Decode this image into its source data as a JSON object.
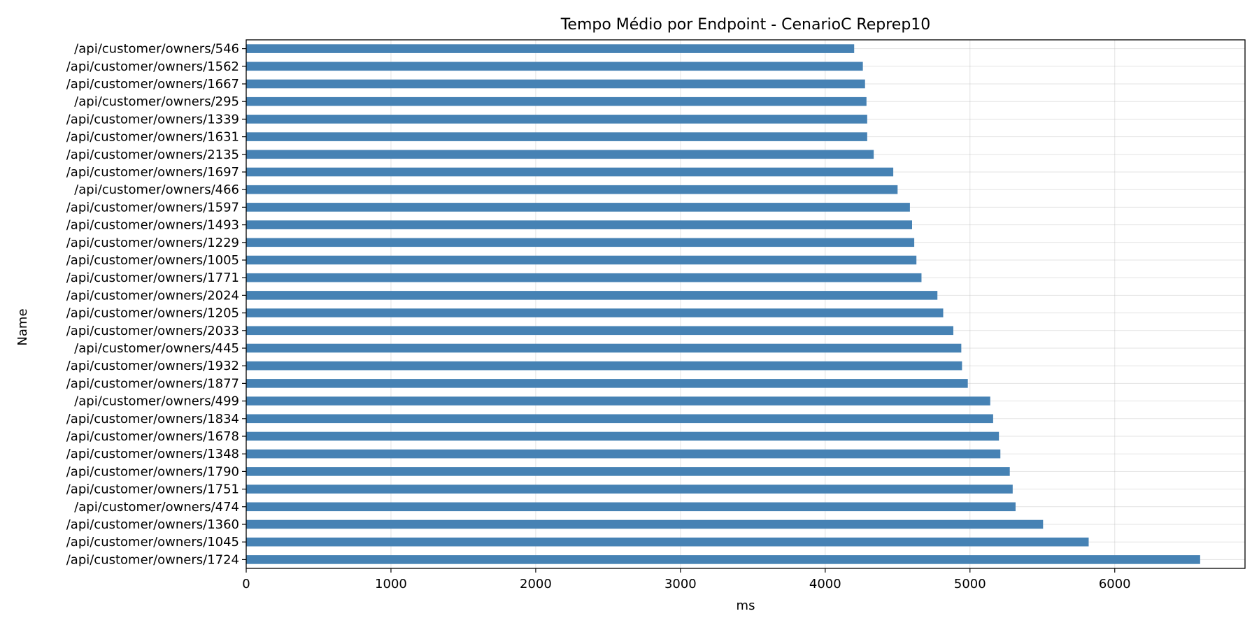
{
  "chart_data": {
    "type": "bar",
    "orientation": "horizontal",
    "title": "Tempo Médio por Endpoint - CenarioC Reprep10",
    "xlabel": "ms",
    "ylabel": "Name",
    "xlim": [
      0,
      6900
    ],
    "xticks": [
      0,
      1000,
      2000,
      3000,
      4000,
      5000,
      6000
    ],
    "grid": true,
    "legend": "none",
    "bar_color": "#4682b4",
    "categories": [
      "/api/customer/owners/546",
      "/api/customer/owners/1562",
      "/api/customer/owners/1667",
      "/api/customer/owners/295",
      "/api/customer/owners/1339",
      "/api/customer/owners/1631",
      "/api/customer/owners/2135",
      "/api/customer/owners/1697",
      "/api/customer/owners/466",
      "/api/customer/owners/1597",
      "/api/customer/owners/1493",
      "/api/customer/owners/1229",
      "/api/customer/owners/1005",
      "/api/customer/owners/1771",
      "/api/customer/owners/2024",
      "/api/customer/owners/1205",
      "/api/customer/owners/2033",
      "/api/customer/owners/445",
      "/api/customer/owners/1932",
      "/api/customer/owners/1877",
      "/api/customer/owners/499",
      "/api/customer/owners/1834",
      "/api/customer/owners/1678",
      "/api/customer/owners/1348",
      "/api/customer/owners/1790",
      "/api/customer/owners/1751",
      "/api/customer/owners/474",
      "/api/customer/owners/1360",
      "/api/customer/owners/1045",
      "/api/customer/owners/1724"
    ],
    "values": [
      4200,
      4260,
      4275,
      4285,
      4290,
      4290,
      4335,
      4470,
      4500,
      4585,
      4600,
      4615,
      4630,
      4665,
      4775,
      4815,
      4885,
      4940,
      4945,
      4985,
      5140,
      5160,
      5200,
      5210,
      5275,
      5295,
      5315,
      5505,
      5820,
      6590
    ]
  }
}
